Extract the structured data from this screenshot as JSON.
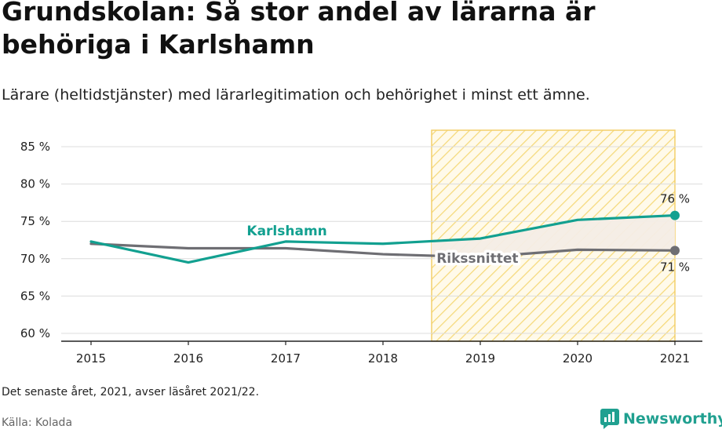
{
  "title": "Grundskolan: Så stor andel av lärarna är behöriga i Karlshamn",
  "subtitle": "Lärare (heltidstjänster) med lärarlegitimation och behörighet i minst ett ämne.",
  "footnote": "Det senaste året, 2021, avser läsåret 2021/22.",
  "source": "Källa: Kolada",
  "brand": {
    "name": "Newsworthy",
    "icon": "newsworthy-logo-icon",
    "color": "#20a090"
  },
  "chart_data": {
    "type": "line",
    "x": [
      2015,
      2016,
      2017,
      2018,
      2019,
      2020,
      2021
    ],
    "x_tick_labels": [
      "2015",
      "2016",
      "2017",
      "2018",
      "2019",
      "2020",
      "2021"
    ],
    "ylim": [
      59,
      87
    ],
    "y_ticks": [
      60,
      65,
      70,
      75,
      80,
      85
    ],
    "y_tick_labels": [
      "60 %",
      "65 %",
      "70 %",
      "75 %",
      "80 %",
      "85 %"
    ],
    "grid": true,
    "highlight_range": [
      2018.5,
      2021
    ],
    "series": [
      {
        "name": "Karlshamn",
        "color": "#12a090",
        "values": [
          72.3,
          69.5,
          72.3,
          72.0,
          72.7,
          75.2,
          75.8
        ],
        "end_label": "76 %"
      },
      {
        "name": "Rikssnittet",
        "color": "#6e6e73",
        "values": [
          72.0,
          71.4,
          71.4,
          70.6,
          70.2,
          71.2,
          71.1
        ],
        "end_label": "71 %"
      }
    ]
  }
}
